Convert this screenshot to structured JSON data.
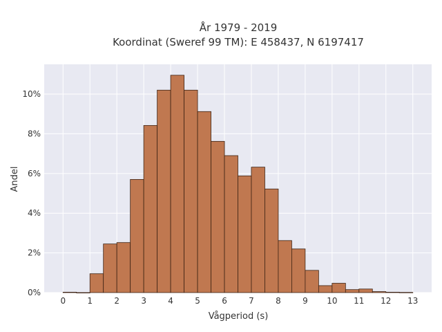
{
  "title": "År 1979 - 2019",
  "subtitle": "Koordinat (Sweref 99 TM): E 458437, N 6197417",
  "colors": {
    "bar_fill": "#c07850",
    "bar_edge": "#3d2314",
    "plot_background": "#e8e9f2",
    "grid": "#ffffff"
  },
  "chart_data": {
    "type": "bar",
    "title": "År 1979 - 2019",
    "subtitle": "Koordinat (Sweref 99 TM): E 458437, N 6197417",
    "xlabel": "Vågperiod (s)",
    "ylabel": "Andel",
    "bin_width": 0.5,
    "bin_starts": [
      0,
      0.5,
      1,
      1.5,
      2,
      2.5,
      3,
      3.5,
      4,
      4.5,
      5,
      5.5,
      6,
      6.5,
      7,
      7.5,
      8,
      8.5,
      9,
      9.5,
      10,
      10.5,
      11,
      11.5,
      12,
      12.5
    ],
    "values": [
      0.02,
      0,
      0.95,
      2.45,
      2.52,
      5.7,
      8.42,
      10.2,
      10.95,
      10.2,
      9.12,
      7.62,
      6.9,
      5.88,
      6.32,
      5.22,
      2.62,
      2.2,
      1.12,
      0.35,
      0.47,
      0.15,
      0.18,
      0.05,
      0.02,
      0.01
    ],
    "value_unit": "%",
    "xticks": [
      0,
      1,
      2,
      3,
      4,
      5,
      6,
      7,
      8,
      9,
      10,
      11,
      12,
      13
    ],
    "xtick_labels": [
      "0",
      "1",
      "2",
      "3",
      "4",
      "5",
      "6",
      "7",
      "8",
      "9",
      "10",
      "11",
      "12",
      "13"
    ],
    "yticks": [
      0,
      2,
      4,
      6,
      8,
      10
    ],
    "ytick_labels": [
      "0%",
      "2%",
      "4%",
      "6%",
      "8%",
      "10%"
    ],
    "xlim": [
      -0.7,
      13.7
    ],
    "ylim": [
      0,
      11.5
    ],
    "grid": true,
    "legend": false
  }
}
